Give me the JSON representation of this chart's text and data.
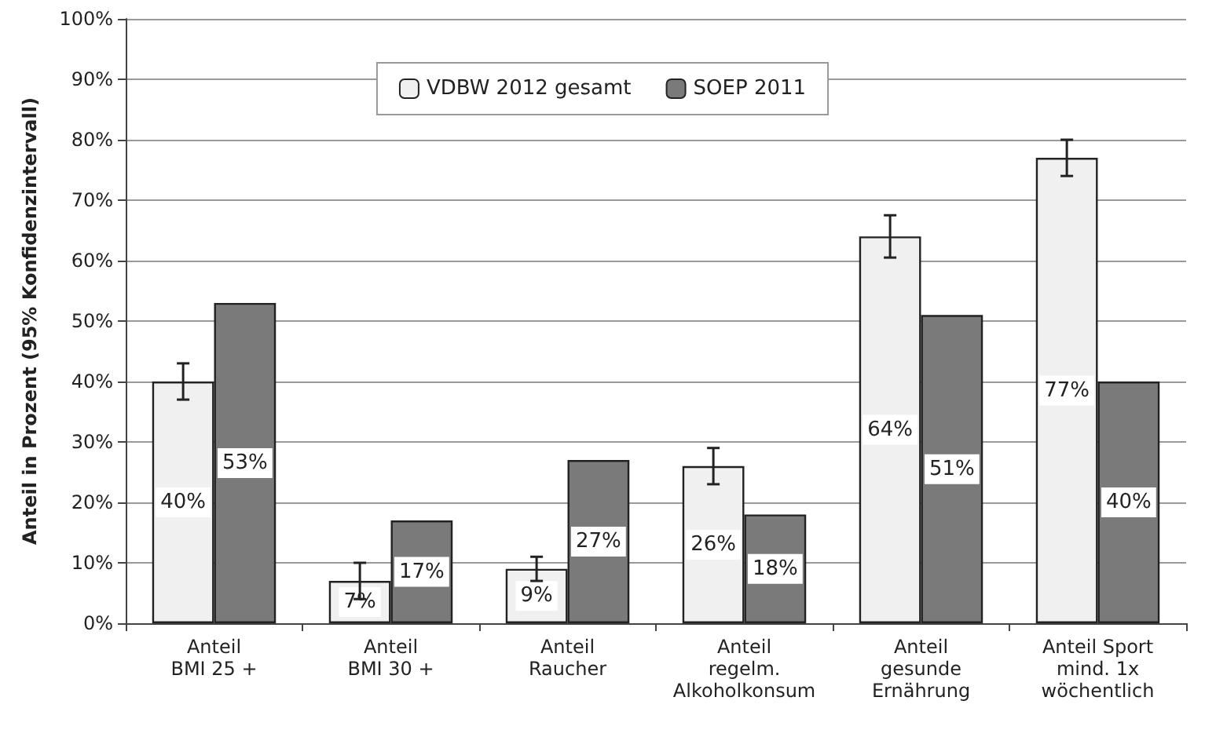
{
  "chart_data": {
    "type": "bar",
    "ylabel": "Anteil in Prozent (95% Konfidenzintervall)",
    "categories": [
      "Anteil\nBMI 25 +",
      "Anteil\nBMI 30 +",
      "Anteil\nRaucher",
      "Anteil\nregelm.\nAlkoholkonsum",
      "Anteil\ngesunde\nErnährung",
      "Anteil Sport\nmind. 1x\nwöchentlich"
    ],
    "series": [
      {
        "name": "VDBW 2012 gesamt",
        "color": "#f0f0f0",
        "values": [
          40,
          7,
          9,
          26,
          64,
          77
        ],
        "errors": [
          3,
          3,
          2,
          3,
          3.5,
          3
        ],
        "value_labels": [
          "40%",
          "7%",
          "9%",
          "26%",
          "64%",
          "77%"
        ]
      },
      {
        "name": "SOEP 2011",
        "color": "#7a7a7a",
        "values": [
          53,
          17,
          27,
          18,
          51,
          40
        ],
        "value_labels": [
          "53%",
          "17%",
          "27%",
          "18%",
          "51%",
          "40%"
        ]
      }
    ],
    "ylim": [
      0,
      100
    ],
    "yticks": [
      {
        "value": 0,
        "label": "0%"
      },
      {
        "value": 10,
        "label": "10%"
      },
      {
        "value": 20,
        "label": "20%"
      },
      {
        "value": 30,
        "label": "30%"
      },
      {
        "value": 40,
        "label": "40%"
      },
      {
        "value": 50,
        "label": "50%"
      },
      {
        "value": 60,
        "label": "60%"
      },
      {
        "value": 70,
        "label": "70%"
      },
      {
        "value": 80,
        "label": "80%"
      },
      {
        "value": 90,
        "label": "90%"
      },
      {
        "value": 100,
        "label": "100%"
      }
    ],
    "grid": "y",
    "legend": "top"
  }
}
